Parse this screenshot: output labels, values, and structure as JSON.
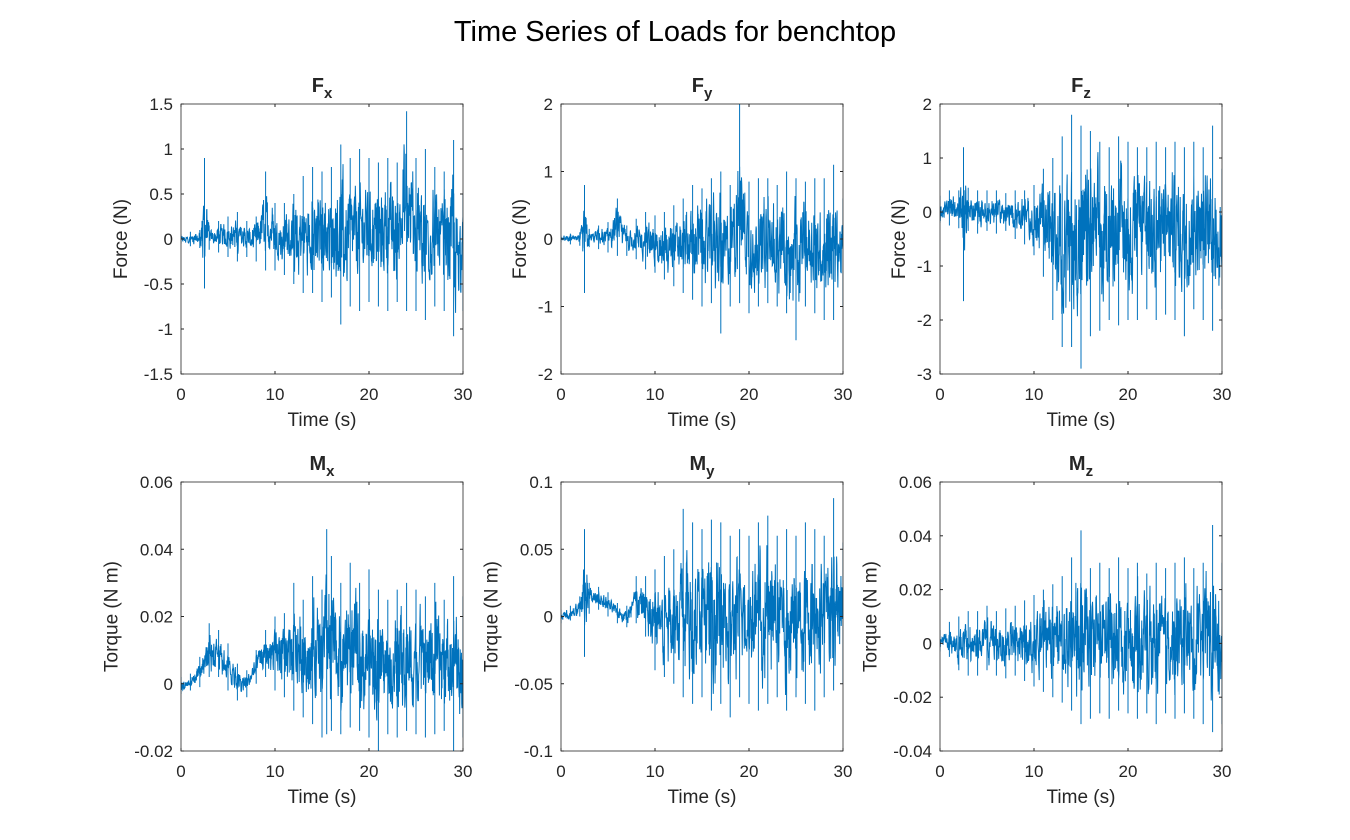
{
  "figure": {
    "title": "Time Series of Loads for benchtop",
    "line_color": "#0072BD"
  },
  "chart_data": [
    {
      "type": "line",
      "title": "F",
      "title_subscript": "x",
      "xlabel": "Time (s)",
      "ylabel": "Force (N)",
      "xlim": [
        0,
        30
      ],
      "ylim": [
        -1.5,
        1.5
      ],
      "xticks": [
        "0",
        "10",
        "20",
        "30"
      ],
      "yticks": [
        "-1.5",
        "-1",
        "-0.5",
        "0",
        "0.5",
        "1",
        "1.5"
      ],
      "grid": false,
      "series": [
        {
          "x": [
            0,
            1,
            2,
            2.5,
            3,
            4,
            5,
            6,
            7,
            8,
            9,
            10,
            11,
            12,
            13,
            14,
            15,
            16,
            17,
            18,
            19,
            20,
            21,
            22,
            23,
            24,
            25,
            26,
            27,
            28,
            29,
            30
          ],
          "max": [
            0.05,
            0.08,
            0.1,
            0.9,
            0.15,
            0.2,
            0.25,
            0.3,
            0.2,
            0.25,
            0.75,
            0.4,
            0.4,
            0.5,
            0.7,
            0.8,
            0.75,
            0.8,
            1.05,
            0.9,
            1.0,
            0.9,
            0.85,
            0.9,
            0.85,
            1.42,
            0.9,
            1.0,
            0.8,
            0.75,
            1.1,
            0.5
          ],
          "min": [
            -0.05,
            -0.08,
            -0.1,
            -0.55,
            -0.12,
            -0.15,
            -0.2,
            -0.25,
            -0.2,
            -0.25,
            -0.35,
            -0.35,
            -0.4,
            -0.5,
            -0.6,
            -0.6,
            -0.7,
            -0.65,
            -0.95,
            -0.75,
            -0.8,
            -0.7,
            -0.75,
            -0.8,
            -0.7,
            -0.8,
            -0.8,
            -0.9,
            -0.75,
            -0.8,
            -1.08,
            -0.8
          ]
        }
      ]
    },
    {
      "type": "line",
      "title": "F",
      "title_subscript": "y",
      "xlabel": "Time (s)",
      "ylabel": "Force (N)",
      "xlim": [
        0,
        30
      ],
      "ylim": [
        -2,
        2
      ],
      "xticks": [
        "0",
        "10",
        "20",
        "30"
      ],
      "yticks": [
        "-2",
        "-1",
        "0",
        "1",
        "2"
      ],
      "grid": false,
      "series": [
        {
          "x": [
            0,
            1,
            2,
            2.5,
            3,
            4,
            5,
            6,
            7,
            8,
            9,
            10,
            11,
            12,
            13,
            14,
            15,
            16,
            17,
            18,
            19,
            20,
            21,
            22,
            23,
            24,
            25,
            26,
            27,
            28,
            29,
            30
          ],
          "max": [
            0.05,
            0.08,
            0.1,
            0.8,
            0.15,
            0.2,
            0.25,
            0.6,
            0.2,
            0.3,
            0.4,
            0.35,
            0.4,
            0.5,
            0.6,
            0.8,
            0.75,
            0.9,
            1.0,
            0.8,
            2.0,
            0.85,
            0.9,
            0.9,
            0.8,
            1.0,
            0.9,
            0.85,
            0.9,
            0.9,
            1.1,
            0.6
          ],
          "min": [
            -0.05,
            -0.08,
            -0.1,
            -0.8,
            -0.12,
            -0.15,
            -0.2,
            -0.25,
            -0.25,
            -0.3,
            -0.45,
            -0.5,
            -0.6,
            -0.7,
            -0.8,
            -0.9,
            -1.0,
            -0.95,
            -1.4,
            -1.0,
            -0.95,
            -1.1,
            -1.0,
            -0.95,
            -1.0,
            -1.1,
            -1.5,
            -1.0,
            -1.1,
            -1.2,
            -1.2,
            -1.0
          ]
        }
      ]
    },
    {
      "type": "line",
      "title": "F",
      "title_subscript": "z",
      "xlabel": "Time (s)",
      "ylabel": "Force (N)",
      "xlim": [
        0,
        30
      ],
      "ylim": [
        -3,
        2
      ],
      "xticks": [
        "0",
        "10",
        "20",
        "30"
      ],
      "yticks": [
        "-3",
        "-2",
        "-1",
        "0",
        "1",
        "2"
      ],
      "grid": false,
      "series": [
        {
          "x": [
            0,
            1,
            2,
            2.5,
            3,
            4,
            5,
            6,
            7,
            8,
            9,
            10,
            11,
            12,
            13,
            14,
            15,
            16,
            17,
            18,
            19,
            20,
            21,
            22,
            23,
            24,
            25,
            26,
            27,
            28,
            29,
            30
          ],
          "max": [
            0.3,
            0.4,
            0.4,
            1.2,
            0.45,
            0.4,
            0.4,
            0.4,
            0.35,
            0.4,
            0.4,
            0.5,
            0.8,
            1.0,
            1.4,
            1.8,
            1.6,
            1.5,
            1.3,
            1.2,
            1.4,
            1.3,
            1.2,
            1.2,
            1.3,
            1.2,
            1.3,
            1.2,
            1.3,
            1.2,
            1.6,
            0.8
          ],
          "min": [
            -0.2,
            -0.25,
            -0.3,
            -1.65,
            -0.35,
            -0.4,
            -0.35,
            -0.4,
            -0.35,
            -0.5,
            -0.6,
            -0.8,
            -1.2,
            -2.0,
            -2.5,
            -2.5,
            -2.9,
            -2.3,
            -2.2,
            -2.0,
            -2.1,
            -2.0,
            -2.0,
            -1.8,
            -2.0,
            -1.9,
            -2.0,
            -2.3,
            -1.8,
            -2.0,
            -2.2,
            -1.8
          ]
        }
      ]
    },
    {
      "type": "line",
      "title": "M",
      "title_subscript": "x",
      "xlabel": "Time (s)",
      "ylabel": "Torque (N m)",
      "xlim": [
        0,
        30
      ],
      "ylim": [
        -0.02,
        0.06
      ],
      "xticks": [
        "0",
        "10",
        "20",
        "30"
      ],
      "yticks": [
        "-0.02",
        "0",
        "0.02",
        "0.04",
        "0.06"
      ],
      "grid": false,
      "series": [
        {
          "x": [
            0,
            1,
            2,
            3,
            4,
            5,
            6,
            7,
            8,
            9,
            10,
            11,
            12,
            13,
            14,
            15,
            15.5,
            16,
            17,
            18,
            19,
            20,
            21,
            22,
            23,
            24,
            25,
            26,
            27,
            28,
            29,
            30
          ],
          "max": [
            0.002,
            0.003,
            0.008,
            0.018,
            0.016,
            0.012,
            0.006,
            0.004,
            0.01,
            0.016,
            0.02,
            0.021,
            0.03,
            0.025,
            0.032,
            0.028,
            0.046,
            0.038,
            0.03,
            0.036,
            0.03,
            0.034,
            0.028,
            0.025,
            0.028,
            0.03,
            0.028,
            0.026,
            0.03,
            0.025,
            0.032,
            0.026
          ],
          "min": [
            -0.003,
            -0.002,
            -0.001,
            0.002,
            0.002,
            -0.002,
            -0.005,
            -0.004,
            0.0,
            0.002,
            -0.002,
            -0.004,
            -0.008,
            -0.01,
            -0.012,
            -0.016,
            -0.015,
            -0.014,
            -0.015,
            -0.013,
            -0.014,
            -0.016,
            -0.02,
            -0.015,
            -0.016,
            -0.014,
            -0.015,
            -0.016,
            -0.015,
            -0.014,
            -0.02,
            -0.016
          ]
        }
      ]
    },
    {
      "type": "line",
      "title": "M",
      "title_subscript": "y",
      "xlabel": "Time (s)",
      "ylabel": "Torque (N m)",
      "xlim": [
        0,
        30
      ],
      "ylim": [
        -0.1,
        0.1
      ],
      "xticks": [
        "0",
        "10",
        "20",
        "30"
      ],
      "yticks": [
        "-0.1",
        "-0.05",
        "0",
        "0.05",
        "0.1"
      ],
      "grid": false,
      "series": [
        {
          "x": [
            0,
            1,
            2,
            2.5,
            3,
            4,
            5,
            6,
            7,
            8,
            9,
            10,
            11,
            12,
            13,
            14,
            15,
            16,
            17,
            18,
            19,
            20,
            21,
            22,
            23,
            24,
            25,
            26,
            27,
            28,
            29,
            30
          ],
          "max": [
            0.005,
            0.008,
            0.015,
            0.065,
            0.025,
            0.022,
            0.018,
            0.01,
            0.008,
            0.03,
            0.03,
            0.035,
            0.045,
            0.05,
            0.08,
            0.07,
            0.065,
            0.072,
            0.07,
            0.06,
            0.065,
            0.06,
            0.07,
            0.075,
            0.06,
            0.065,
            0.06,
            0.07,
            0.065,
            0.06,
            0.088,
            0.055
          ],
          "min": [
            -0.005,
            -0.003,
            0.0,
            -0.03,
            0.002,
            0.005,
            0.0,
            -0.005,
            -0.008,
            -0.005,
            -0.015,
            -0.04,
            -0.045,
            -0.05,
            -0.06,
            -0.065,
            -0.06,
            -0.07,
            -0.065,
            -0.075,
            -0.06,
            -0.065,
            -0.07,
            -0.065,
            -0.06,
            -0.07,
            -0.06,
            -0.065,
            -0.07,
            -0.06,
            -0.055,
            -0.05
          ]
        }
      ]
    },
    {
      "type": "line",
      "title": "M",
      "title_subscript": "z",
      "xlabel": "Time (s)",
      "ylabel": "Torque (N m)",
      "xlim": [
        0,
        30
      ],
      "ylim": [
        -0.04,
        0.06
      ],
      "xticks": [
        "0",
        "10",
        "20",
        "30"
      ],
      "yticks": [
        "-0.04",
        "-0.02",
        "0",
        "0.02",
        "0.04",
        "0.06"
      ],
      "grid": false,
      "series": [
        {
          "x": [
            0,
            1,
            2,
            3,
            4,
            5,
            6,
            7,
            8,
            9,
            10,
            11,
            12,
            13,
            14,
            15,
            16,
            17,
            18,
            19,
            20,
            21,
            22,
            23,
            24,
            25,
            26,
            27,
            28,
            29,
            30
          ],
          "max": [
            0.005,
            0.008,
            0.01,
            0.012,
            0.012,
            0.014,
            0.012,
            0.013,
            0.014,
            0.016,
            0.018,
            0.02,
            0.022,
            0.025,
            0.032,
            0.042,
            0.028,
            0.03,
            0.028,
            0.032,
            0.028,
            0.03,
            0.026,
            0.03,
            0.028,
            0.03,
            0.032,
            0.028,
            0.03,
            0.044,
            0.03
          ],
          "min": [
            -0.003,
            -0.005,
            -0.01,
            -0.012,
            -0.012,
            -0.01,
            -0.012,
            -0.013,
            -0.012,
            -0.014,
            -0.016,
            -0.018,
            -0.02,
            -0.022,
            -0.025,
            -0.03,
            -0.028,
            -0.026,
            -0.028,
            -0.025,
            -0.026,
            -0.028,
            -0.026,
            -0.03,
            -0.026,
            -0.028,
            -0.026,
            -0.028,
            -0.03,
            -0.033,
            -0.03
          ]
        }
      ]
    }
  ]
}
